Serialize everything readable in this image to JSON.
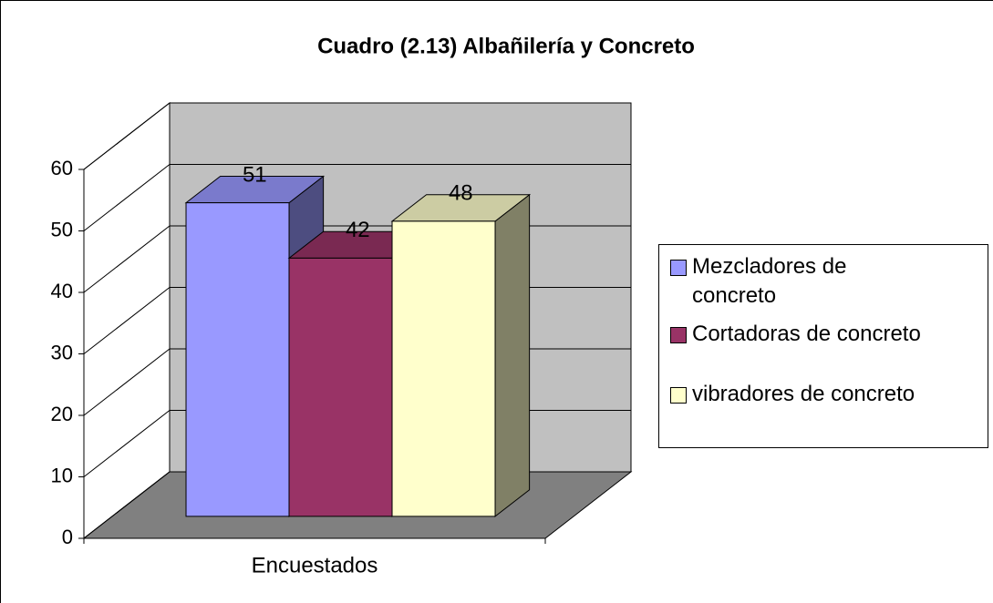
{
  "chart_data": {
    "type": "bar3d",
    "title": "Cuadro (2.13) Albañilería y Concreto",
    "categories": [
      "Encuestados"
    ],
    "series": [
      {
        "name": "Mezcladores de concreto",
        "color": "#9999ff",
        "values": [
          51
        ]
      },
      {
        "name": "Cortadoras de concreto",
        "color": "#993366",
        "values": [
          42
        ]
      },
      {
        "name": "vibradores de concreto",
        "color": "#ffffcc",
        "values": [
          48
        ]
      }
    ],
    "ylim": [
      0,
      60
    ],
    "yticks": [
      0,
      10,
      20,
      30,
      40,
      50,
      60
    ],
    "grid": true,
    "legend": "right"
  }
}
